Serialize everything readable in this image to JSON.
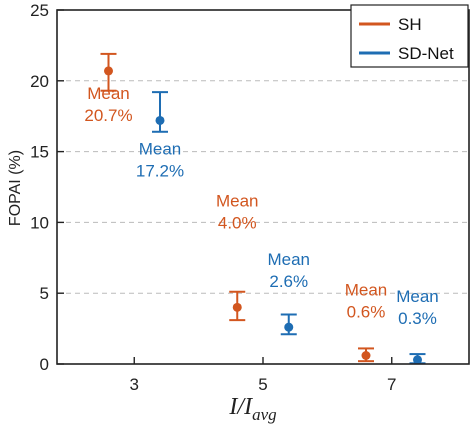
{
  "colors": {
    "SH": "#D2561F",
    "SD-Net": "#1E6DB3",
    "axis": "#222222",
    "grid": "#BBBBBB"
  },
  "chart_data": {
    "type": "scatter",
    "ylabel": "FOPAI (%)",
    "xlabel": {
      "main": "I",
      "sep": "/",
      "base": "I",
      "sub": "avg"
    },
    "xlim": [
      1.8,
      8.2
    ],
    "ylim": [
      0,
      25
    ],
    "xticks": [
      3,
      5,
      7
    ],
    "yticks": [
      0,
      5,
      10,
      15,
      20,
      25
    ],
    "grid": "y-dashed",
    "legend_position": "top-right",
    "series": [
      {
        "name": "SH",
        "points": [
          {
            "x": 2.6,
            "y": 20.7,
            "lower": 19.3,
            "upper": 21.9,
            "note_line1": "Mean",
            "note_line2": "20.7%"
          },
          {
            "x": 4.6,
            "y": 4.0,
            "lower": 3.1,
            "upper": 5.1,
            "note_line1": "Mean",
            "note_line2": "4.0%"
          },
          {
            "x": 6.6,
            "y": 0.6,
            "lower": 0.2,
            "upper": 1.1,
            "note_line1": "Mean",
            "note_line2": "0.6%"
          }
        ]
      },
      {
        "name": "SD-Net",
        "points": [
          {
            "x": 3.4,
            "y": 17.2,
            "lower": 16.4,
            "upper": 19.2,
            "note_line1": "Mean",
            "note_line2": "17.2%"
          },
          {
            "x": 5.4,
            "y": 2.6,
            "lower": 2.1,
            "upper": 3.5,
            "note_line1": "Mean",
            "note_line2": "2.6%"
          },
          {
            "x": 7.4,
            "y": 0.3,
            "lower": 0.05,
            "upper": 0.7,
            "note_line1": "Mean",
            "note_line2": "0.3%"
          }
        ]
      }
    ]
  }
}
